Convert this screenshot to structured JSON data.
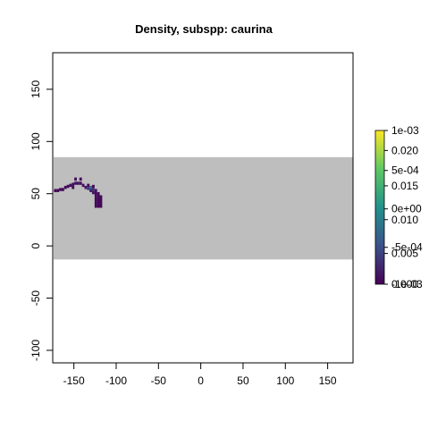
{
  "chart_data": {
    "type": "heatmap",
    "title": "Density, subspp: caurina",
    "xlabel": "",
    "ylabel": "",
    "xlim": [
      -175,
      180
    ],
    "ylim": [
      -112,
      185
    ],
    "x_ticks": [
      -150,
      -100,
      -50,
      0,
      50,
      100,
      150
    ],
    "y_ticks": [
      -100,
      -50,
      0,
      50,
      100,
      150
    ],
    "x_tick_labels": [
      "-150",
      "-100",
      "-50",
      "0",
      "50",
      "100",
      "150"
    ],
    "y_tick_labels": [
      "-100",
      "-50",
      "0",
      "50",
      "100",
      "150"
    ],
    "grid": false,
    "background_band": {
      "y_from": -13,
      "y_to": 85,
      "color": "#bebebe"
    },
    "cells": [
      {
        "x": -172,
        "y": 53,
        "value": 0.0005
      },
      {
        "x": -169,
        "y": 53,
        "value": 0.0004
      },
      {
        "x": -166,
        "y": 54,
        "value": 0.0006
      },
      {
        "x": -163,
        "y": 54,
        "value": 0.0005
      },
      {
        "x": -160,
        "y": 56,
        "value": 0.0005
      },
      {
        "x": -157,
        "y": 57,
        "value": 0.0007
      },
      {
        "x": -154,
        "y": 58,
        "value": 0.0009
      },
      {
        "x": -151,
        "y": 59,
        "value": 0.0011
      },
      {
        "x": -148,
        "y": 60,
        "value": 0.0012
      },
      {
        "x": -151,
        "y": 56,
        "value": 0.0006
      },
      {
        "x": -145,
        "y": 60,
        "value": 0.0014
      },
      {
        "x": -142,
        "y": 60,
        "value": 0.0012
      },
      {
        "x": -139,
        "y": 58,
        "value": 0.001
      },
      {
        "x": -136,
        "y": 56,
        "value": 0.0015
      },
      {
        "x": -133,
        "y": 55,
        "value": 0.004
      },
      {
        "x": -130,
        "y": 56,
        "value": 0.0075
      },
      {
        "x": -130,
        "y": 53,
        "value": 0.002
      },
      {
        "x": -127,
        "y": 54,
        "value": 0.003
      },
      {
        "x": -127,
        "y": 51,
        "value": 0.0012
      },
      {
        "x": -124,
        "y": 53,
        "value": 0.0011
      },
      {
        "x": -124,
        "y": 50,
        "value": 0.0009
      },
      {
        "x": -124,
        "y": 47,
        "value": 0.0008
      },
      {
        "x": -124,
        "y": 44,
        "value": 0.0006
      },
      {
        "x": -124,
        "y": 41,
        "value": 0.0005
      },
      {
        "x": -124,
        "y": 38,
        "value": 0.0004
      },
      {
        "x": -121,
        "y": 50,
        "value": 0.0007
      },
      {
        "x": -121,
        "y": 47,
        "value": 0.0006
      },
      {
        "x": -121,
        "y": 44,
        "value": 0.0005
      },
      {
        "x": -121,
        "y": 41,
        "value": 0.0005
      },
      {
        "x": -121,
        "y": 38,
        "value": 0.0004
      },
      {
        "x": -118,
        "y": 47,
        "value": 0.0005
      },
      {
        "x": -118,
        "y": 44,
        "value": 0.0004
      },
      {
        "x": -118,
        "y": 41,
        "value": 0.0004
      },
      {
        "x": -118,
        "y": 38,
        "value": 0.0004
      },
      {
        "x": -148,
        "y": 64,
        "value": 0.0008
      },
      {
        "x": -142,
        "y": 64,
        "value": 0.0006
      },
      {
        "x": -133,
        "y": 58,
        "value": 0.0006
      },
      {
        "x": -127,
        "y": 57,
        "value": 0.0006
      }
    ],
    "legend_scale": {
      "colors": [
        "#440154",
        "#3b528b",
        "#21918c",
        "#5ec962",
        "#fde725"
      ],
      "labels_right": [
        {
          "label": "1e-03",
          "pos": 1.0
        },
        {
          "label": "0.020",
          "pos": 0.87
        },
        {
          "label": "5e-04",
          "pos": 0.74
        },
        {
          "label": "0.015",
          "pos": 0.64
        },
        {
          "label": "0e+00",
          "pos": 0.49
        },
        {
          "label": "0.010",
          "pos": 0.42
        },
        {
          "label": "-5e-04",
          "pos": 0.24
        },
        {
          "label": "0.005",
          "pos": 0.2
        },
        {
          "label": "-1e-03",
          "pos": 0.0
        },
        {
          "label": "0.000",
          "pos": 0.0
        }
      ],
      "value_min": 0,
      "value_max": 0.022
    }
  }
}
